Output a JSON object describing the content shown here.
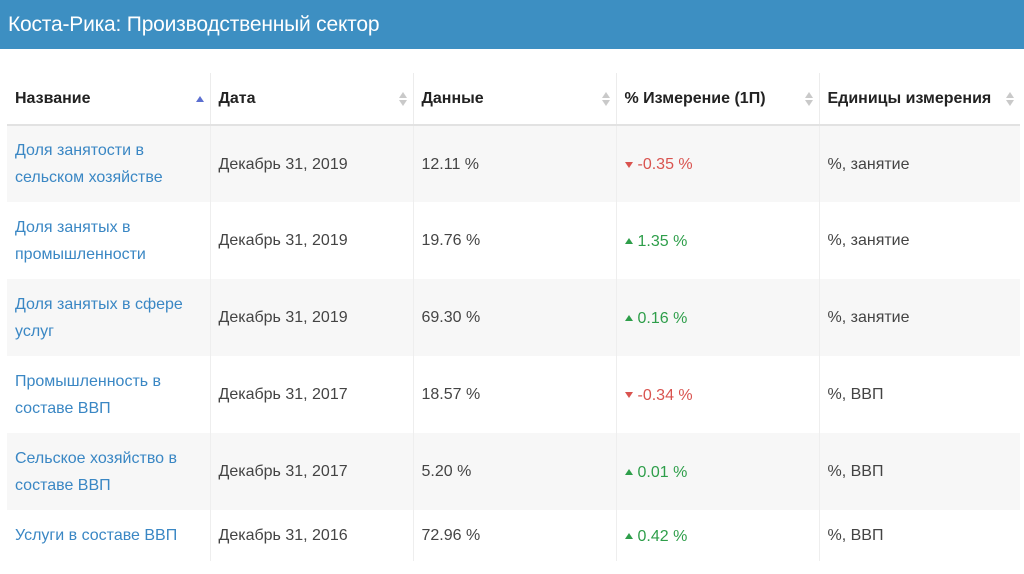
{
  "header": {
    "title": "Коста-Рика: Производственный сектор"
  },
  "table": {
    "columns": [
      "Название",
      "Дата",
      "Данные",
      "% Измерение (1П)",
      "Единицы измерения"
    ],
    "rows": [
      {
        "name": "Доля занятости в сельском хозяйстве",
        "date": "Декабрь 31, 2019",
        "value": "12.11 %",
        "change": "-0.35 %",
        "direction": "down",
        "unit": "%, занятие"
      },
      {
        "name": "Доля занятых в промышленности",
        "date": "Декабрь 31, 2019",
        "value": "19.76 %",
        "change": "1.35 %",
        "direction": "up",
        "unit": "%, занятие"
      },
      {
        "name": "Доля занятых в сфере услуг",
        "date": "Декабрь 31, 2019",
        "value": "69.30 %",
        "change": "0.16 %",
        "direction": "up",
        "unit": "%, занятие"
      },
      {
        "name": "Промышленность в составе ВВП",
        "date": "Декабрь 31, 2017",
        "value": "18.57 %",
        "change": "-0.34 %",
        "direction": "down",
        "unit": "%, ВВП"
      },
      {
        "name": "Сельское хозяйство в составе ВВП",
        "date": "Декабрь 31, 2017",
        "value": "5.20 %",
        "change": "0.01 %",
        "direction": "up",
        "unit": "%, ВВП"
      },
      {
        "name": "Услуги в составе ВВП",
        "date": "Декабрь 31, 2016",
        "value": "72.96 %",
        "change": "0.42 %",
        "direction": "up",
        "unit": "%, ВВП"
      }
    ]
  },
  "colors": {
    "header_bg": "#3d8fc2",
    "link": "#3a87c4",
    "up": "#2e9e4a",
    "down": "#d9534f"
  }
}
